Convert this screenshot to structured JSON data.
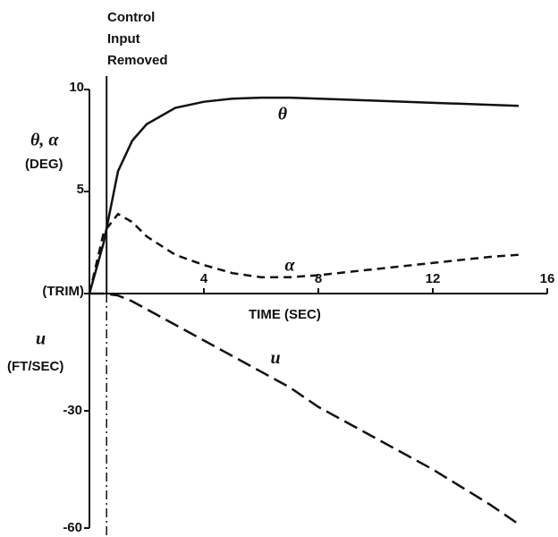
{
  "chart_data": {
    "type": "line",
    "annotation": {
      "text": [
        "Control",
        "Input",
        "Removed"
      ],
      "x": 0.6
    },
    "ylabel": [
      "θ, α",
      "(DEG)"
    ],
    "y2label": [
      "u",
      "(FT/SEC)"
    ],
    "xlabel": "TIME (SEC)",
    "x": [
      0,
      0.5,
      1,
      1.5,
      2,
      3,
      4,
      5,
      6,
      7,
      8,
      10,
      12,
      14,
      15
    ],
    "xlim": [
      0,
      16
    ],
    "xticks": [
      4,
      8,
      12,
      16
    ],
    "ylim": [
      0,
      10
    ],
    "yticks": [
      {
        "value": 0,
        "label": "(TRIM)"
      },
      5,
      10
    ],
    "y2lim": [
      -60,
      0
    ],
    "y2ticks": [
      -60,
      -30
    ],
    "series": [
      {
        "name": "θ",
        "color": "#111",
        "style": "solid",
        "values": [
          0,
          2.5,
          6,
          7.5,
          8.3,
          9.1,
          9.4,
          9.55,
          9.6,
          9.6,
          9.55,
          9.45,
          9.35,
          9.25,
          9.2
        ]
      },
      {
        "name": "α",
        "color": "#111",
        "style": "dashed",
        "values": [
          0,
          3,
          3.9,
          3.5,
          2.8,
          1.9,
          1.4,
          1.0,
          0.8,
          0.8,
          0.9,
          1.2,
          1.5,
          1.8,
          1.9
        ]
      },
      {
        "name": "u",
        "color": "#111",
        "style": "longdash",
        "axis": "y2",
        "values": [
          0,
          0,
          -0.5,
          -2,
          -4,
          -8,
          -12,
          -16,
          -20,
          -24,
          -29,
          -37,
          -45,
          -54,
          -59
        ]
      }
    ]
  }
}
